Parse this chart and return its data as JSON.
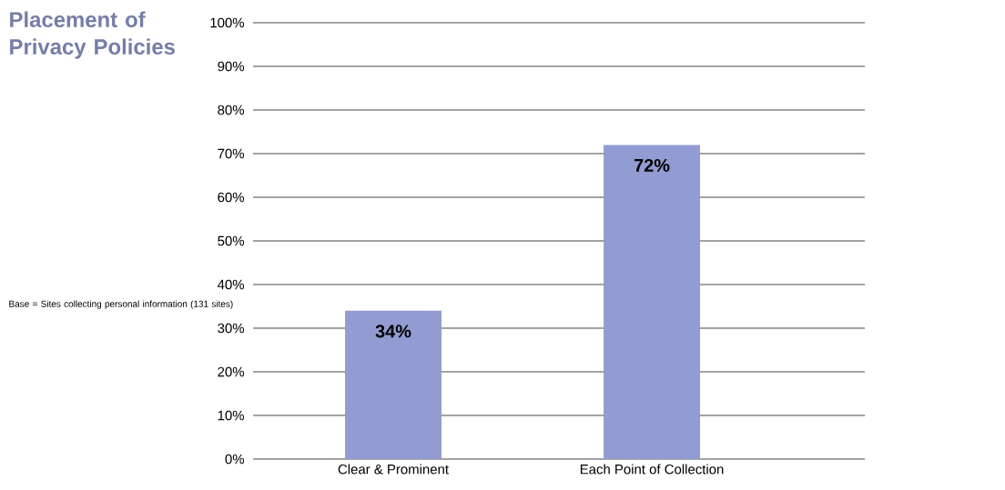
{
  "chart_data": {
    "type": "bar",
    "title": "Placement of Privacy Policies",
    "annotations": [
      "Base = Sites collecting personal information (131 sites)"
    ],
    "categories": [
      "Clear & Prominent",
      "Each Point of Collection"
    ],
    "values": [
      34,
      72
    ],
    "value_labels": [
      "34%",
      "72%"
    ],
    "color": "#929cd2",
    "ylim": [
      0,
      100
    ],
    "yticks": [
      {
        "value": 0,
        "label": "0%"
      },
      {
        "value": 10,
        "label": "10%"
      },
      {
        "value": 20,
        "label": "20%"
      },
      {
        "value": 30,
        "label": "30%"
      },
      {
        "value": 40,
        "label": "40%"
      },
      {
        "value": 50,
        "label": "50%"
      },
      {
        "value": 60,
        "label": "60%"
      },
      {
        "value": 70,
        "label": "70%"
      },
      {
        "value": 80,
        "label": "80%"
      },
      {
        "value": 90,
        "label": "90%"
      },
      {
        "value": 100,
        "label": "100%"
      }
    ],
    "grid": "y"
  }
}
